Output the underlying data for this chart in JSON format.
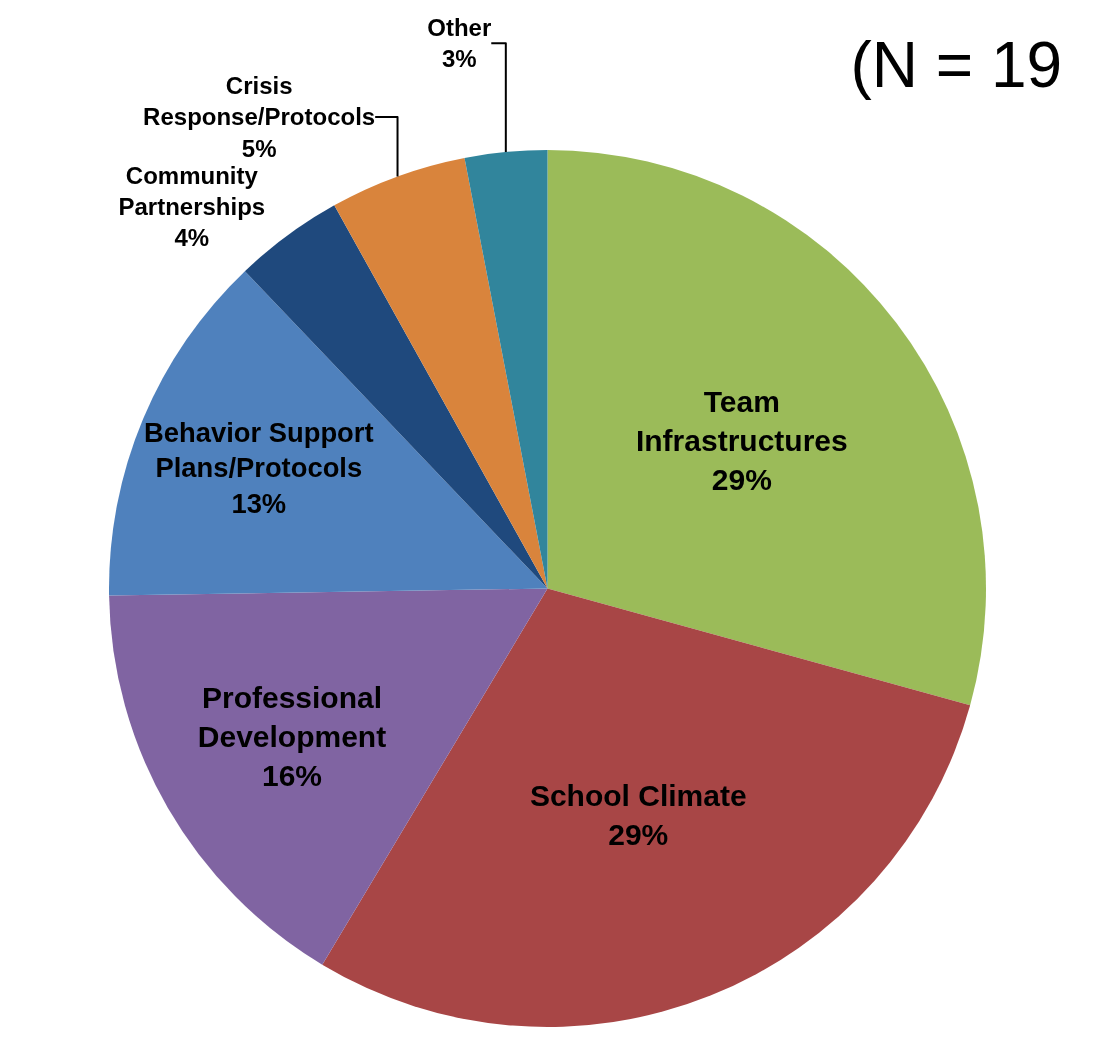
{
  "chart_data": {
    "type": "pie",
    "title": "(N = 19",
    "categories": [
      "Team Infrastructures",
      "School Climate",
      "Professional Development",
      "Behavior Support Plans/Protocols",
      "Community Partnerships",
      "Crisis Response/Protocols",
      "Other"
    ],
    "values": [
      29,
      29,
      16,
      13,
      4,
      5,
      3
    ],
    "colors": [
      "#9bbb59",
      "#a84646",
      "#8064a2",
      "#4f81bd",
      "#1f497d",
      "#d9843c",
      "#31859c"
    ],
    "value_labels": [
      "29%",
      "29%",
      "16%",
      "13%",
      "4%",
      "5%",
      "3%"
    ],
    "legend": false
  }
}
